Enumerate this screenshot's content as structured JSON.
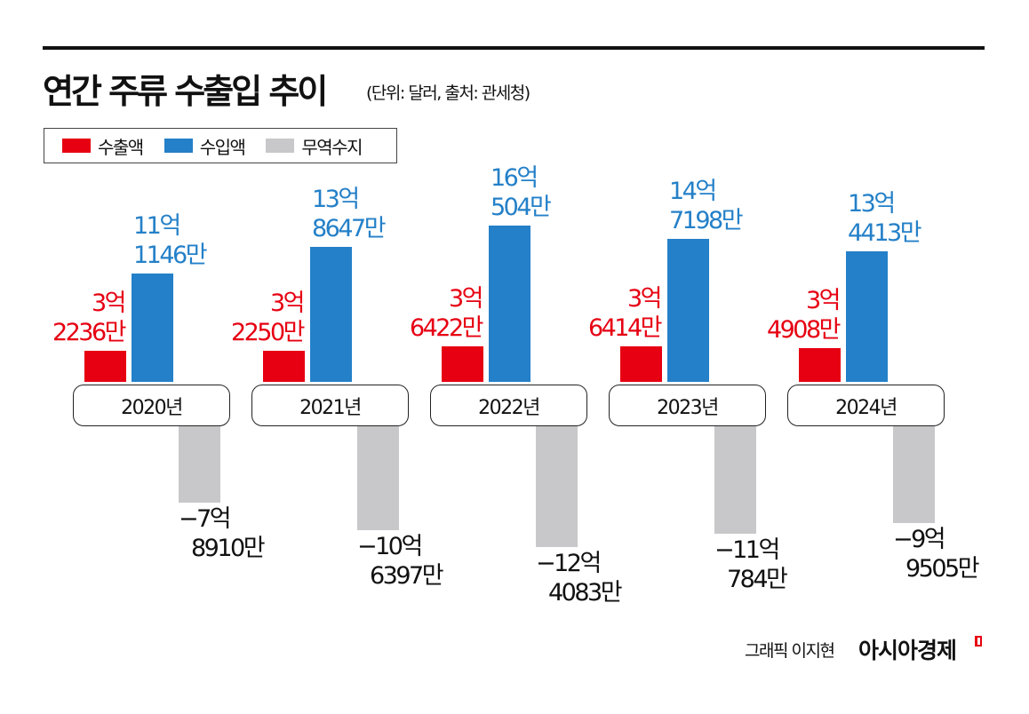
{
  "title": "연간 주류 수출입 추이",
  "subtitle": "(단위: 달러, 출처: 관세청)",
  "credit": "그래픽 이지현",
  "brand": "아시아경제",
  "colors": {
    "export": "#e60012",
    "import": "#2480c8",
    "balance": "#c8c8cb"
  },
  "chart_data": {
    "type": "bar",
    "title": "연간 주류 수출입 추이",
    "unit": "억 달러",
    "categories": [
      "2020년",
      "2021년",
      "2022년",
      "2023년",
      "2024년"
    ],
    "legend": [
      "수출액",
      "수입액",
      "무역수지"
    ],
    "legend_position": "top-left",
    "series": [
      {
        "name": "수출액",
        "values": [
          3.2236,
          3.225,
          3.6422,
          3.6414,
          3.4908
        ],
        "labels": [
          [
            "3억",
            "2236만"
          ],
          [
            "3억",
            "2250만"
          ],
          [
            "3억",
            "6422만"
          ],
          [
            "3억",
            "6414만"
          ],
          [
            "3억",
            "4908만"
          ]
        ]
      },
      {
        "name": "수입액",
        "values": [
          11.1146,
          13.8647,
          16.0504,
          14.7198,
          13.4413
        ],
        "labels": [
          [
            "11억",
            "1146만"
          ],
          [
            "13억",
            "8647만"
          ],
          [
            "16억",
            "504만"
          ],
          [
            "14억",
            "7198만"
          ],
          [
            "13억",
            "4413만"
          ]
        ]
      },
      {
        "name": "무역수지",
        "values": [
          -7.891,
          -10.6397,
          -12.4083,
          -11.0784,
          -9.9505
        ],
        "labels": [
          [
            "−7억",
            "8910만"
          ],
          [
            "−10억",
            "6397만"
          ],
          [
            "−12억",
            "4083만"
          ],
          [
            "−11억",
            "784만"
          ],
          [
            "−9억",
            "9505만"
          ]
        ]
      }
    ]
  }
}
